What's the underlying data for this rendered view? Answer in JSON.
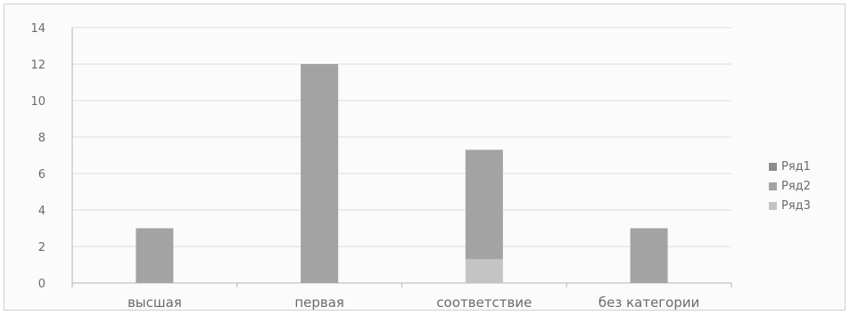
{
  "chart_data": {
    "type": "bar",
    "categories": [
      "высшая",
      "первая",
      "соответствие",
      "без категории"
    ],
    "series": [
      {
        "name": "Ряд1",
        "values": [
          0,
          0,
          0,
          0
        ],
        "color": "#8c8c8c"
      },
      {
        "name": "Ряд2",
        "values": [
          3,
          12,
          6,
          3
        ],
        "color": "#a3a3a3"
      },
      {
        "name": "Ряд3",
        "values": [
          0,
          0,
          1.3,
          0
        ],
        "color": "#c4c4c4"
      }
    ],
    "stacked": true,
    "ylim": [
      0,
      14
    ],
    "yticks": [
      "0",
      "2",
      "4",
      "6",
      "8",
      "10",
      "12",
      "14"
    ],
    "grid": true,
    "legend": "right",
    "title": "",
    "xlabel": "",
    "ylabel": ""
  }
}
